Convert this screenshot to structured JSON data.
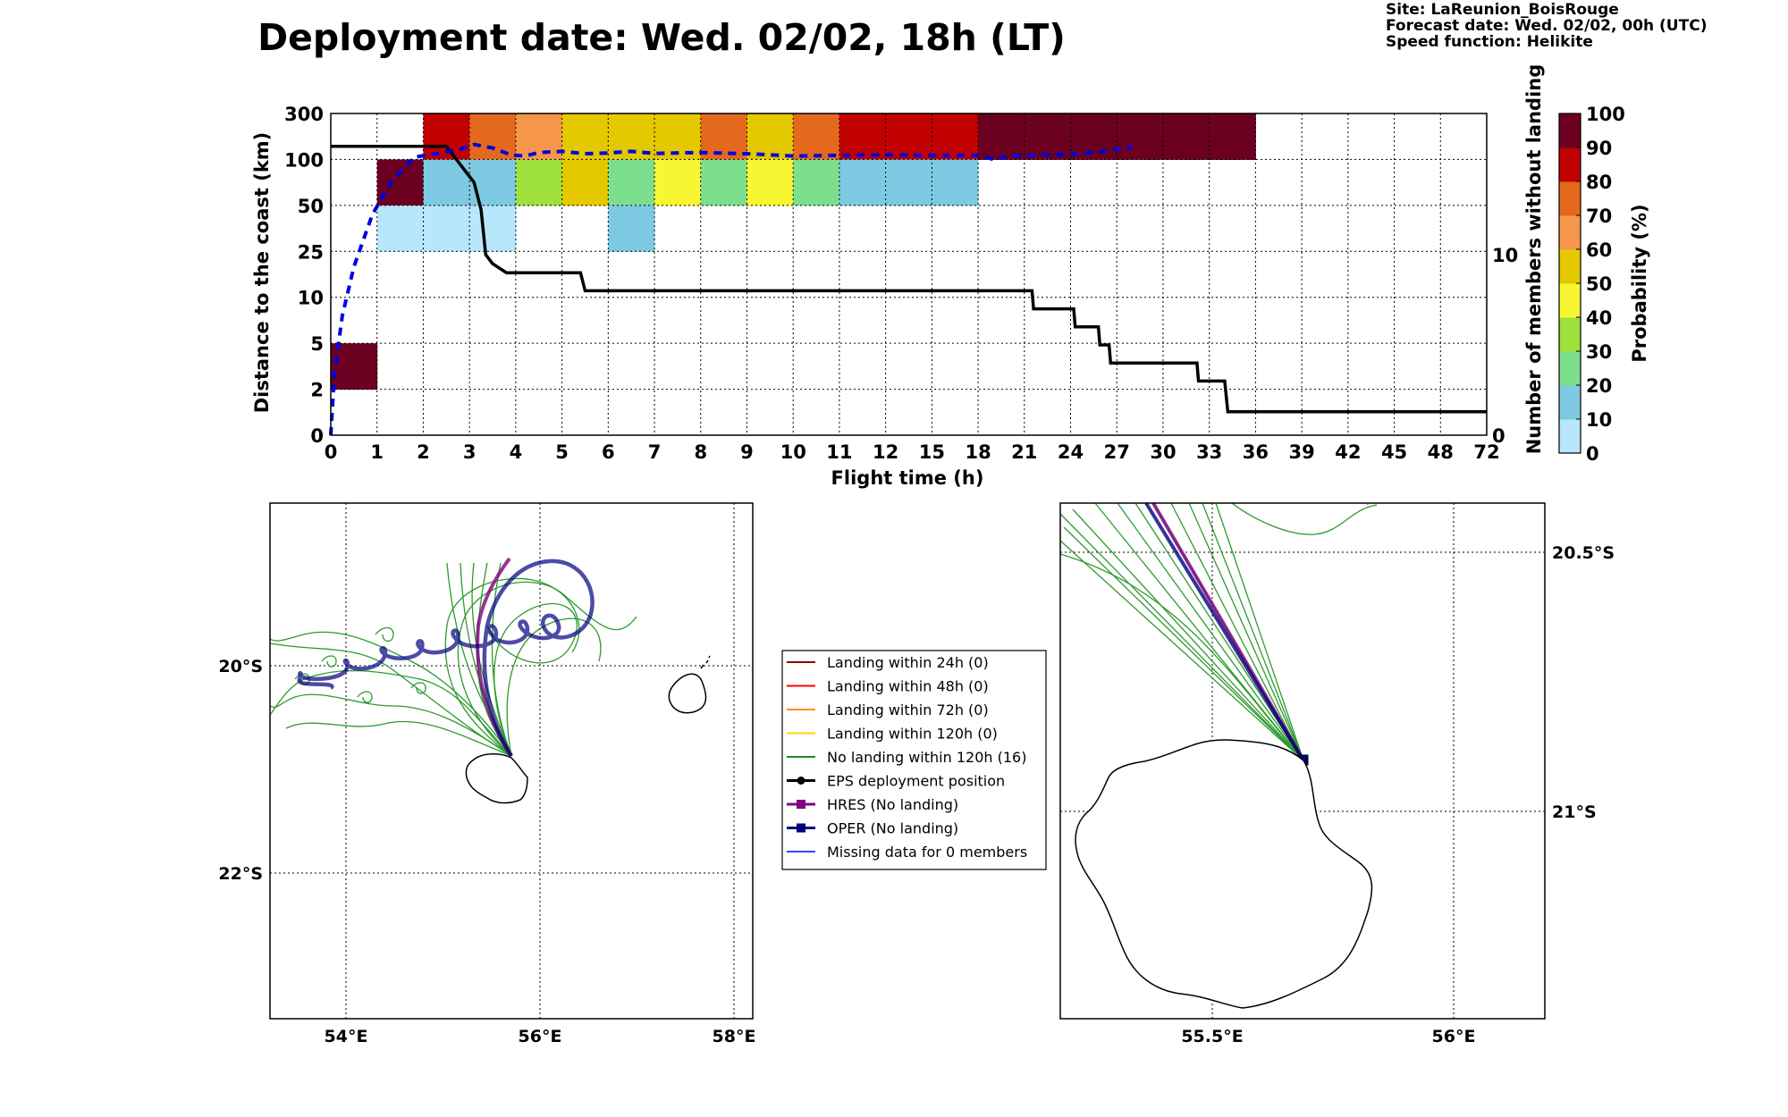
{
  "title": "Deployment date: Wed. 02/02, 18h (LT)",
  "site_info": {
    "site": "Site: LaReunion_BoisRouge",
    "forecast": "Forecast date: Wed. 02/02, 00h (UTC)",
    "speed": "Speed function: Helikite"
  },
  "chart_data": [
    {
      "type": "heatmap",
      "xlabel": "Flight time (h)",
      "ylabel": "Distance to the coast (km)",
      "y2label": "Number of members without landing",
      "x_tick_labels": [
        "0",
        "1",
        "2",
        "3",
        "4",
        "5",
        "6",
        "7",
        "8",
        "9",
        "10",
        "11",
        "12",
        "15",
        "18",
        "21",
        "24",
        "27",
        "30",
        "33",
        "36",
        "39",
        "42",
        "45",
        "48",
        "72"
      ],
      "y_tick_labels": [
        "0",
        "2",
        "5",
        "10",
        "25",
        "50",
        "100",
        "300"
      ],
      "y2_ticks": [
        0,
        10
      ],
      "colorbar": {
        "label": "Probability (%)",
        "ticks": [
          "0",
          "10",
          "20",
          "30",
          "40",
          "50",
          "60",
          "70",
          "80",
          "90",
          "100"
        ],
        "colors": [
          "#b8e6fa",
          "#7ec9e2",
          "#7ddf8e",
          "#9ee03c",
          "#f8f632",
          "#e4c800",
          "#f6964a",
          "#e4691c",
          "#c10000",
          "#6b0020"
        ]
      },
      "cells": [
        {
          "x": 0,
          "y": 1,
          "p": 100
        },
        {
          "x": 1,
          "y": 5,
          "p": 100
        },
        {
          "x": 1,
          "y": 4,
          "p": 0
        },
        {
          "x": 2,
          "y": 4,
          "p": 0
        },
        {
          "x": 3,
          "y": 4,
          "p": 0
        },
        {
          "x": 2,
          "y": 6,
          "p": 85
        },
        {
          "x": 3,
          "y": 6,
          "p": 75
        },
        {
          "x": 4,
          "y": 6,
          "p": 65
        },
        {
          "x": 5,
          "y": 6,
          "p": 55
        },
        {
          "x": 6,
          "y": 6,
          "p": 55
        },
        {
          "x": 7,
          "y": 6,
          "p": 55
        },
        {
          "x": 8,
          "y": 6,
          "p": 75
        },
        {
          "x": 9,
          "y": 6,
          "p": 55
        },
        {
          "x": 10,
          "y": 6,
          "p": 75
        },
        {
          "x": 11,
          "y": 6,
          "p": 85
        },
        {
          "x": 12,
          "y": 6,
          "p": 85
        },
        {
          "x": 13,
          "y": 6,
          "p": 85
        },
        {
          "x": 14,
          "y": 6,
          "p": 95
        },
        {
          "x": 15,
          "y": 6,
          "p": 95
        },
        {
          "x": 16,
          "y": 6,
          "p": 95
        },
        {
          "x": 17,
          "y": 6,
          "p": 95
        },
        {
          "x": 18,
          "y": 6,
          "p": 95
        },
        {
          "x": 19,
          "y": 6,
          "p": 95
        },
        {
          "x": 2,
          "y": 5,
          "p": 15
        },
        {
          "x": 3,
          "y": 5,
          "p": 15
        },
        {
          "x": 4,
          "y": 5,
          "p": 35
        },
        {
          "x": 5,
          "y": 5,
          "p": 55
        },
        {
          "x": 6,
          "y": 5,
          "p": 25
        },
        {
          "x": 7,
          "y": 5,
          "p": 45
        },
        {
          "x": 8,
          "y": 5,
          "p": 25
        },
        {
          "x": 9,
          "y": 5,
          "p": 45
        },
        {
          "x": 10,
          "y": 5,
          "p": 25
        },
        {
          "x": 11,
          "y": 5,
          "p": 15
        },
        {
          "x": 12,
          "y": 5,
          "p": 15
        },
        {
          "x": 13,
          "y": 5,
          "p": 15
        },
        {
          "x": 6,
          "y": 4,
          "p": 15
        }
      ],
      "members_without_landing": [
        [
          0,
          16
        ],
        [
          2.5,
          16
        ],
        [
          2.8,
          15
        ],
        [
          3.1,
          14
        ],
        [
          3.25,
          12.5
        ],
        [
          3.35,
          10
        ],
        [
          3.5,
          9.5
        ],
        [
          3.8,
          9
        ],
        [
          5.4,
          9
        ],
        [
          5.5,
          8
        ],
        [
          21.5,
          8
        ],
        [
          21.6,
          7
        ],
        [
          24.2,
          7
        ],
        [
          24.3,
          6
        ],
        [
          25.8,
          6
        ],
        [
          25.9,
          5
        ],
        [
          26.5,
          5
        ],
        [
          26.6,
          4
        ],
        [
          32.2,
          4
        ],
        [
          32.3,
          3
        ],
        [
          34,
          3
        ],
        [
          34.2,
          1.3
        ],
        [
          72,
          1.3
        ]
      ],
      "hres_distance": [
        [
          0,
          0
        ],
        [
          0.08,
          3
        ],
        [
          0.25,
          8
        ],
        [
          0.5,
          20
        ],
        [
          0.9,
          45
        ],
        [
          1.3,
          75
        ],
        [
          1.8,
          110
        ],
        [
          2.3,
          125
        ],
        [
          2.8,
          145
        ],
        [
          3.1,
          165
        ],
        [
          3.5,
          150
        ],
        [
          3.9,
          120
        ],
        [
          4.2,
          115
        ],
        [
          4.5,
          130
        ],
        [
          5,
          135
        ],
        [
          5.5,
          125
        ],
        [
          6,
          128
        ],
        [
          6.5,
          135
        ],
        [
          7,
          126
        ],
        [
          8,
          130
        ],
        [
          9,
          125
        ],
        [
          10,
          115
        ],
        [
          11,
          118
        ],
        [
          12,
          120
        ],
        [
          15,
          118
        ],
        [
          18,
          118
        ],
        [
          19,
          100
        ],
        [
          20,
          115
        ],
        [
          22,
          120
        ],
        [
          24,
          122
        ],
        [
          26,
          135
        ],
        [
          28,
          155
        ]
      ]
    }
  ],
  "maps": {
    "left": {
      "x_tick_labels": [
        "54°E",
        "56°E",
        "58°E"
      ],
      "y_tick_labels": [
        "20°S",
        "22°S"
      ]
    },
    "right": {
      "x_tick_labels": [
        "55.5°E",
        "56°E"
      ],
      "y_tick_labels": [
        "20.5°S",
        "21°S"
      ]
    }
  },
  "legend": [
    {
      "label": "Landing within 24h (0)",
      "color": "#8b0000",
      "marker": "none"
    },
    {
      "label": "Landing within 48h (0)",
      "color": "#ff0000",
      "marker": "none"
    },
    {
      "label": "Landing within 72h (0)",
      "color": "#ff8c00",
      "marker": "none"
    },
    {
      "label": "Landing within 120h (0)",
      "color": "#ffd700",
      "marker": "none"
    },
    {
      "label": "No landing within 120h (16)",
      "color": "#228b22",
      "marker": "none"
    },
    {
      "label": "EPS deployment position",
      "color": "#000000",
      "marker": "circle"
    },
    {
      "label": "HRES (No landing)",
      "color": "#800080",
      "marker": "square"
    },
    {
      "label": "OPER (No landing)",
      "color": "#000080",
      "marker": "square"
    },
    {
      "label": "Missing data for 0 members",
      "color": "#4040ff",
      "marker": "none"
    }
  ]
}
